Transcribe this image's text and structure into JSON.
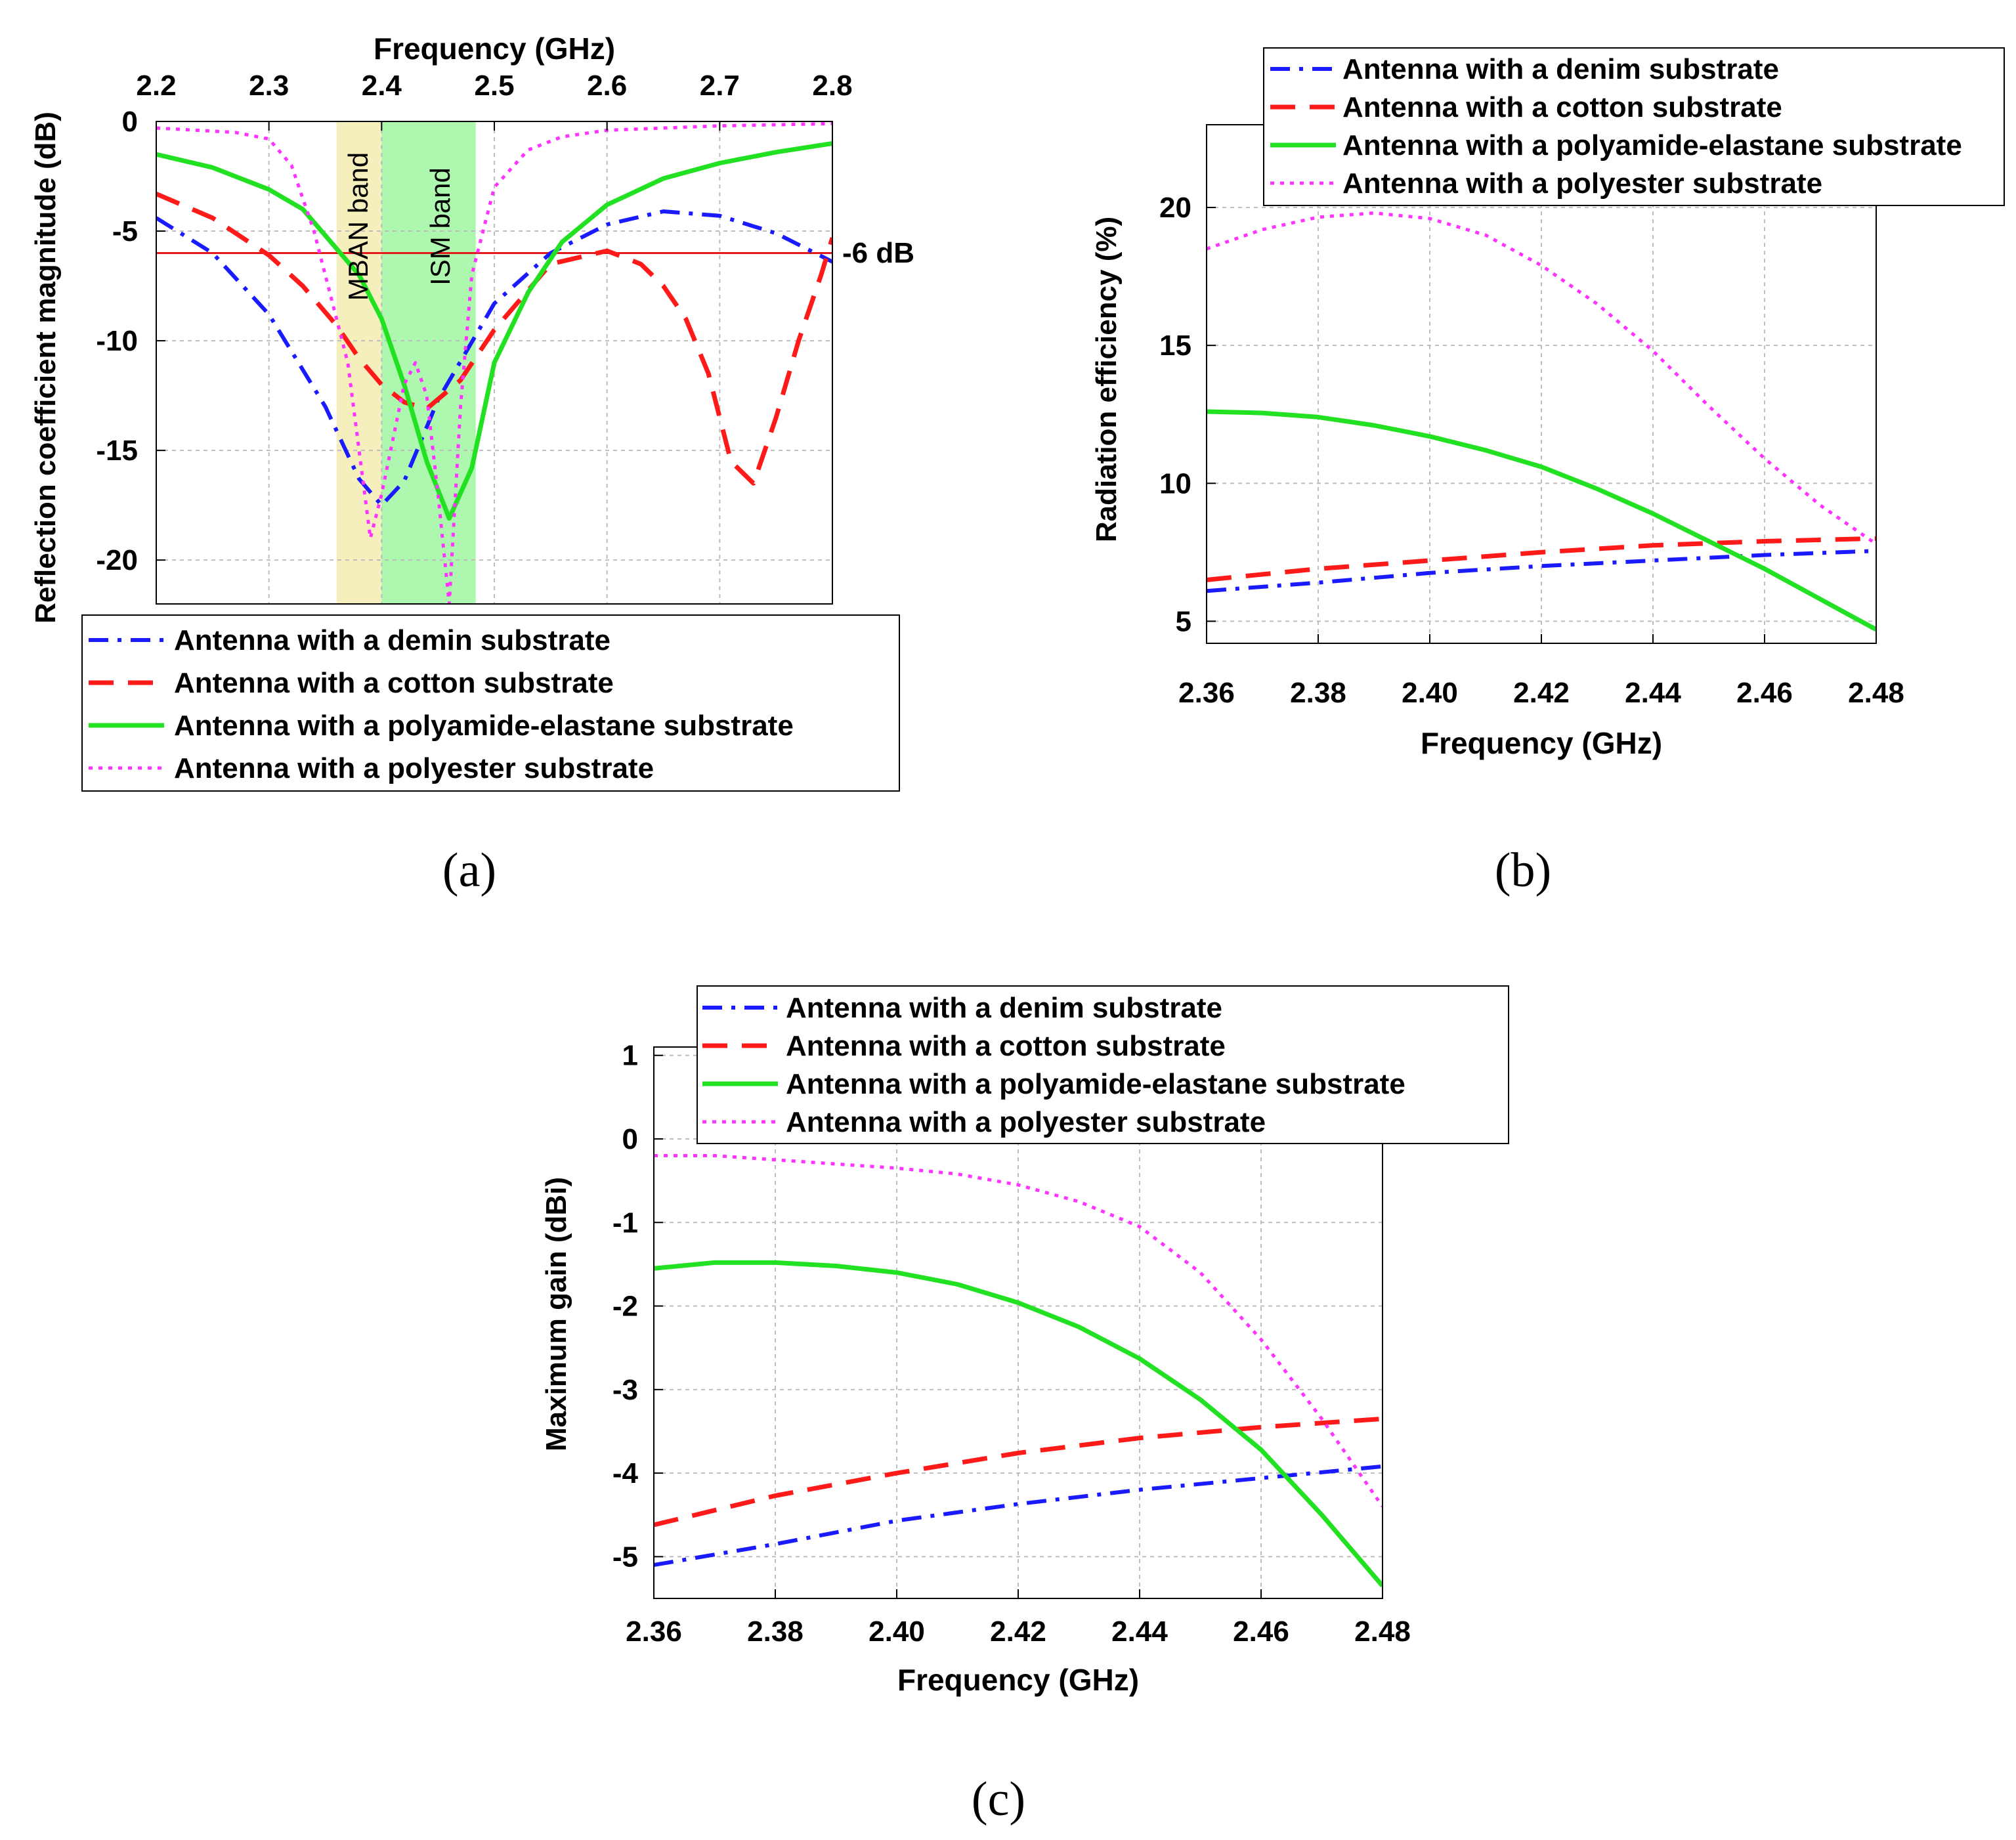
{
  "colors": {
    "demin": "#1a1aff",
    "cotton": "#ff1a1a",
    "polyamide": "#22e022",
    "polyester": "#ff33ff",
    "mban_band": "#f5efbe",
    "ism_band": "#aef7ae",
    "threshold": "#e31a1c",
    "grid": "#bdbdbd"
  },
  "chart_data": [
    {
      "id": "a",
      "type": "line",
      "panel_label": "(a)",
      "title": "",
      "xlabel": "Frequency (GHz)",
      "ylabel": "Reflection coefficient magnitude (dB)",
      "xlim": [
        2.2,
        2.8
      ],
      "ylim": [
        -22,
        0
      ],
      "x_axis_position": "top",
      "x_ticks": [
        "2.2",
        "2.3",
        "2.4",
        "2.5",
        "2.6",
        "2.7",
        "2.8"
      ],
      "y_ticks": [
        "0",
        "-5",
        "-10",
        "-15",
        "-20"
      ],
      "x_tick_values": [
        2.2,
        2.3,
        2.4,
        2.5,
        2.6,
        2.7,
        2.8
      ],
      "y_tick_values": [
        0,
        -5,
        -10,
        -15,
        -20
      ],
      "grid": true,
      "legend_position": "bottom",
      "bands": [
        {
          "label": "MBAN band",
          "x0": 2.36,
          "x1": 2.4,
          "color_key": "mban_band"
        },
        {
          "label": "ISM band",
          "x0": 2.4,
          "x1": 2.4835,
          "color_key": "ism_band"
        }
      ],
      "threshold": {
        "value": -6,
        "label": "-6 dB"
      },
      "series": [
        {
          "key": "demin",
          "name": "Antenna with a demin substrate",
          "style": "dashdot",
          "x": [
            2.2,
            2.25,
            2.3,
            2.35,
            2.38,
            2.4,
            2.42,
            2.45,
            2.5,
            2.55,
            2.6,
            2.65,
            2.7,
            2.75,
            2.8
          ],
          "y": [
            -4.4,
            -6.0,
            -8.8,
            -13.0,
            -16.3,
            -17.5,
            -16.4,
            -12.7,
            -8.3,
            -6.0,
            -4.7,
            -4.1,
            -4.3,
            -5.1,
            -6.4
          ]
        },
        {
          "key": "cotton",
          "name": "Antenna with a cotton substrate",
          "style": "dash",
          "x": [
            2.2,
            2.25,
            2.3,
            2.33,
            2.36,
            2.38,
            2.4,
            2.42,
            2.44,
            2.47,
            2.5,
            2.55,
            2.6,
            2.63,
            2.65,
            2.67,
            2.69,
            2.71,
            2.73,
            2.75,
            2.77,
            2.79,
            2.8
          ],
          "y": [
            -3.3,
            -4.4,
            -6.1,
            -7.5,
            -9.3,
            -10.8,
            -12.0,
            -12.8,
            -13.1,
            -11.8,
            -9.5,
            -6.5,
            -5.9,
            -6.5,
            -7.5,
            -9.0,
            -11.5,
            -15.5,
            -16.5,
            -13.5,
            -10.0,
            -7.0,
            -5.3
          ]
        },
        {
          "key": "polyamide",
          "name": "Antenna with a polyamide-elastane substrate",
          "style": "solid",
          "x": [
            2.2,
            2.25,
            2.3,
            2.33,
            2.35,
            2.38,
            2.4,
            2.42,
            2.44,
            2.46,
            2.48,
            2.5,
            2.53,
            2.56,
            2.6,
            2.65,
            2.7,
            2.75,
            2.8
          ],
          "y": [
            -1.5,
            -2.1,
            -3.1,
            -4.0,
            -5.2,
            -7.0,
            -9.0,
            -12.0,
            -15.5,
            -18.1,
            -15.8,
            -11.0,
            -7.8,
            -5.5,
            -3.8,
            -2.6,
            -1.9,
            -1.4,
            -1.0
          ]
        },
        {
          "key": "polyester",
          "name": "Antenna with a polyester substrate",
          "style": "dot",
          "x": [
            2.2,
            2.27,
            2.3,
            2.32,
            2.34,
            2.35,
            2.37,
            2.39,
            2.4,
            2.42,
            2.43,
            2.44,
            2.45,
            2.46,
            2.47,
            2.48,
            2.5,
            2.53,
            2.56,
            2.6,
            2.7,
            2.8
          ],
          "y": [
            -0.3,
            -0.5,
            -0.8,
            -2.0,
            -5.0,
            -7.0,
            -11.0,
            -19.0,
            -17.0,
            -12.0,
            -11.0,
            -12.5,
            -17.0,
            -22.0,
            -13.0,
            -7.0,
            -3.0,
            -1.3,
            -0.7,
            -0.4,
            -0.2,
            -0.1
          ]
        }
      ]
    },
    {
      "id": "b",
      "type": "line",
      "panel_label": "(b)",
      "title": "",
      "xlabel": "Frequency (GHz)",
      "ylabel": "Radiation efficiency (%)",
      "xlim": [
        2.36,
        2.48
      ],
      "ylim": [
        4.2,
        23
      ],
      "x_axis_position": "bottom",
      "x_ticks": [
        "2.36",
        "2.38",
        "2.40",
        "2.42",
        "2.44",
        "2.46",
        "2.48"
      ],
      "y_ticks": [
        "5",
        "10",
        "15",
        "20"
      ],
      "x_tick_values": [
        2.36,
        2.38,
        2.4,
        2.42,
        2.44,
        2.46,
        2.48
      ],
      "y_tick_values": [
        5,
        10,
        15,
        20
      ],
      "grid": true,
      "legend_position": "top",
      "series": [
        {
          "key": "demin",
          "name": "Antenna with a denim substrate",
          "style": "dashdot",
          "x": [
            2.36,
            2.38,
            2.4,
            2.42,
            2.44,
            2.46,
            2.48
          ],
          "y": [
            6.1,
            6.4,
            6.75,
            7.0,
            7.2,
            7.4,
            7.55
          ]
        },
        {
          "key": "cotton",
          "name": "Antenna with a cotton substrate",
          "style": "dash",
          "x": [
            2.36,
            2.38,
            2.4,
            2.42,
            2.44,
            2.46,
            2.48
          ],
          "y": [
            6.5,
            6.9,
            7.2,
            7.5,
            7.75,
            7.9,
            8.0
          ]
        },
        {
          "key": "polyamide",
          "name": "Antenna with a polyamide-elastane substrate",
          "style": "solid",
          "x": [
            2.36,
            2.37,
            2.38,
            2.39,
            2.4,
            2.41,
            2.42,
            2.43,
            2.44,
            2.45,
            2.46,
            2.47,
            2.48
          ],
          "y": [
            12.6,
            12.55,
            12.4,
            12.1,
            11.7,
            11.2,
            10.6,
            9.8,
            8.9,
            7.9,
            6.9,
            5.8,
            4.7
          ]
        },
        {
          "key": "polyester",
          "name": "Antenna with a polyester substrate",
          "style": "dot",
          "x": [
            2.36,
            2.37,
            2.38,
            2.39,
            2.4,
            2.41,
            2.42,
            2.43,
            2.44,
            2.45,
            2.46,
            2.47,
            2.48
          ],
          "y": [
            18.5,
            19.2,
            19.65,
            19.8,
            19.6,
            19.0,
            17.9,
            16.5,
            14.8,
            12.8,
            10.9,
            9.2,
            7.8
          ]
        }
      ]
    },
    {
      "id": "c",
      "type": "line",
      "panel_label": "(c)",
      "title": "",
      "xlabel": "Frequency (GHz)",
      "ylabel": "Maximum gain (dBi)",
      "xlim": [
        2.36,
        2.48
      ],
      "ylim": [
        -5.5,
        1.1
      ],
      "x_axis_position": "bottom",
      "x_ticks": [
        "2.36",
        "2.38",
        "2.40",
        "2.42",
        "2.44",
        "2.46",
        "2.48"
      ],
      "y_ticks": [
        "1",
        "0",
        "-1",
        "-2",
        "-3",
        "-4",
        "-5"
      ],
      "x_tick_values": [
        2.36,
        2.38,
        2.4,
        2.42,
        2.44,
        2.46,
        2.48
      ],
      "y_tick_values": [
        1,
        0,
        -1,
        -2,
        -3,
        -4,
        -5
      ],
      "grid": true,
      "legend_position": "top",
      "series": [
        {
          "key": "demin",
          "name": "Antenna with a denim substrate",
          "style": "dashdot",
          "x": [
            2.36,
            2.38,
            2.4,
            2.42,
            2.44,
            2.46,
            2.48
          ],
          "y": [
            -5.1,
            -4.85,
            -4.57,
            -4.37,
            -4.2,
            -4.06,
            -3.92
          ]
        },
        {
          "key": "cotton",
          "name": "Antenna with a cotton substrate",
          "style": "dash",
          "x": [
            2.36,
            2.38,
            2.4,
            2.42,
            2.44,
            2.46,
            2.48
          ],
          "y": [
            -4.62,
            -4.27,
            -4.0,
            -3.76,
            -3.58,
            -3.45,
            -3.35
          ]
        },
        {
          "key": "polyamide",
          "name": "Antenna with a polyamide-elastane substrate",
          "style": "solid",
          "x": [
            2.36,
            2.37,
            2.38,
            2.39,
            2.4,
            2.41,
            2.42,
            2.43,
            2.44,
            2.45,
            2.46,
            2.47,
            2.48
          ],
          "y": [
            -1.55,
            -1.48,
            -1.48,
            -1.52,
            -1.6,
            -1.74,
            -1.96,
            -2.25,
            -2.63,
            -3.12,
            -3.72,
            -4.5,
            -5.35
          ]
        },
        {
          "key": "polyester",
          "name": "Antenna with a polyester substrate",
          "style": "dot",
          "x": [
            2.36,
            2.37,
            2.38,
            2.39,
            2.4,
            2.41,
            2.42,
            2.43,
            2.44,
            2.45,
            2.46,
            2.47,
            2.48
          ],
          "y": [
            -0.2,
            -0.2,
            -0.25,
            -0.3,
            -0.35,
            -0.42,
            -0.55,
            -0.75,
            -1.05,
            -1.6,
            -2.4,
            -3.35,
            -4.4
          ]
        }
      ]
    }
  ]
}
